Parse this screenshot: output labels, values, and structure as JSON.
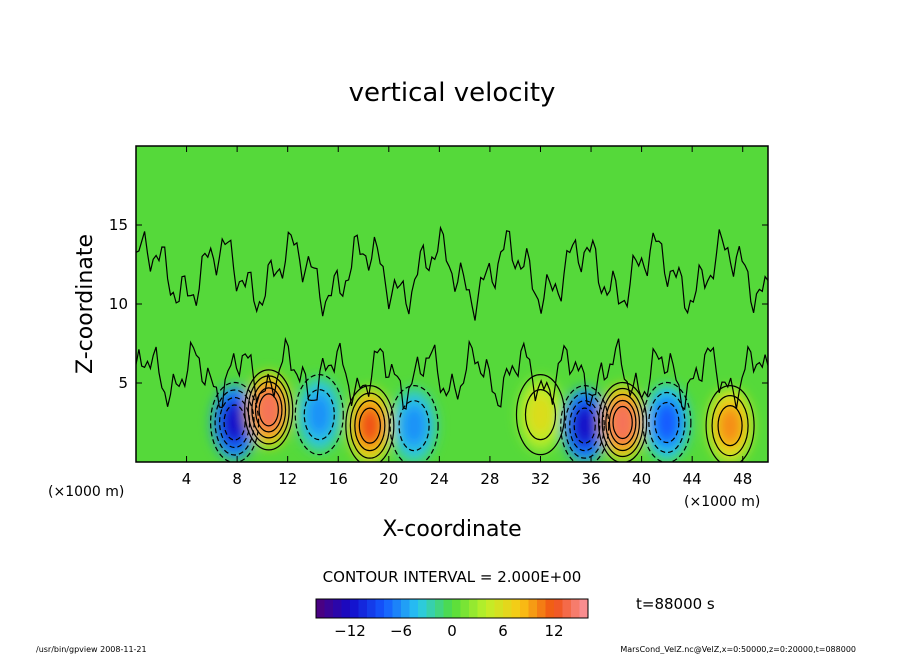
{
  "chart_data": {
    "type": "heatmap",
    "title": "vertical velocity",
    "xlabel": "X-coordinate",
    "ylabel": "Z-coordinate",
    "x_unit": "(×1000 m)",
    "xlim": [
      0,
      50
    ],
    "ylim": [
      0,
      20
    ],
    "x_ticks": [
      4,
      8,
      12,
      16,
      20,
      24,
      28,
      32,
      36,
      40,
      44,
      48
    ],
    "y_ticks": [
      5,
      10,
      15
    ],
    "contour_interval_label": "CONTOUR INTERVAL = 2.000E+00",
    "time_label": "t=88000 s",
    "colorbar": {
      "range": [
        -16,
        16
      ],
      "ticks": [
        -12,
        -6,
        0,
        6,
        12
      ],
      "tick_labels": [
        "−12",
        "−6",
        "0",
        "6",
        "12"
      ]
    },
    "cells": [
      {
        "x": 7.8,
        "z": 2.5,
        "value": -12
      },
      {
        "x": 10.5,
        "z": 3.3,
        "value": 14
      },
      {
        "x": 14.5,
        "z": 3.0,
        "value": -6
      },
      {
        "x": 18.5,
        "z": 2.3,
        "value": 12
      },
      {
        "x": 22.0,
        "z": 2.3,
        "value": -6
      },
      {
        "x": 32.0,
        "z": 3.0,
        "value": 6
      },
      {
        "x": 35.5,
        "z": 2.3,
        "value": -12
      },
      {
        "x": 38.5,
        "z": 2.5,
        "value": 14
      },
      {
        "x": 42.0,
        "z": 2.5,
        "value": -8
      },
      {
        "x": 47.0,
        "z": 2.3,
        "value": 10
      }
    ]
  },
  "footer": {
    "left": "/usr/bin/gpview  2008-11-21",
    "right": "MarsCond_VelZ.nc@VelZ,x=0:50000,z=0:20000,t=088000"
  }
}
